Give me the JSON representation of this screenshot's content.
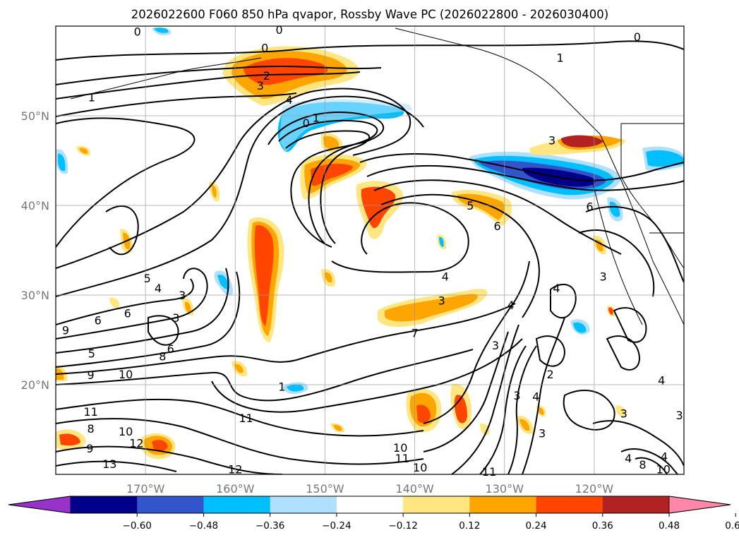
{
  "chart_data": {
    "type": "map",
    "title": "2026022600 F060 850 hPa qvapor, Rossby Wave PC (2026022800 - 2026030400)",
    "lon_range": [
      -180,
      -110
    ],
    "lat_range": [
      10,
      60
    ],
    "x_ticks": [
      {
        "value": -170,
        "label": "170°W"
      },
      {
        "value": -160,
        "label": "160°W"
      },
      {
        "value": -150,
        "label": "150°W"
      },
      {
        "value": -140,
        "label": "140°W"
      },
      {
        "value": -130,
        "label": "130°W"
      },
      {
        "value": -120,
        "label": "120°W"
      }
    ],
    "y_ticks": [
      {
        "value": 50,
        "label": "50°N"
      },
      {
        "value": 40,
        "label": "40°N"
      },
      {
        "value": 30,
        "label": "30°N"
      },
      {
        "value": 20,
        "label": "20°N"
      }
    ],
    "grid": true,
    "colorbar": {
      "orientation": "horizontal",
      "extend": "both",
      "levels": [
        -0.6,
        -0.48,
        -0.36,
        -0.24,
        -0.12,
        0.12,
        0.24,
        0.36,
        0.48,
        0.6
      ],
      "tick_labels": [
        "−0.60",
        "−0.48",
        "−0.36",
        "−0.24",
        "−0.12",
        "0.12",
        "0.24",
        "0.36",
        "0.48",
        "0.60"
      ],
      "colors": [
        "#9932cc",
        "#00008b",
        "#3355cc",
        "#00bfff",
        "#b0e0ff",
        "#ffffff",
        "#ffe680",
        "#ffa500",
        "#ff4500",
        "#b22222",
        "#ff88aa"
      ]
    },
    "contour_labels": [
      {
        "text": "0",
        "lon": -170.9,
        "lat": 59.4
      },
      {
        "text": "0",
        "lon": -155.1,
        "lat": 59.6
      },
      {
        "text": "0",
        "lon": -156.7,
        "lat": 57.6
      },
      {
        "text": "2",
        "lon": -156.5,
        "lat": 54.5
      },
      {
        "text": "3",
        "lon": -157.2,
        "lat": 53.4
      },
      {
        "text": "4",
        "lon": -154.0,
        "lat": 51.8
      },
      {
        "text": "1",
        "lon": -176.0,
        "lat": 52.1
      },
      {
        "text": "1",
        "lon": -151.0,
        "lat": 49.8
      },
      {
        "text": "0",
        "lon": -152.1,
        "lat": 49.2
      },
      {
        "text": "0",
        "lon": -115.2,
        "lat": 58.8
      },
      {
        "text": "1",
        "lon": -123.8,
        "lat": 56.5
      },
      {
        "text": "3",
        "lon": -124.7,
        "lat": 47.3
      },
      {
        "text": "5",
        "lon": -133.8,
        "lat": 40.0
      },
      {
        "text": "6",
        "lon": -130.8,
        "lat": 37.7
      },
      {
        "text": "6",
        "lon": -120.5,
        "lat": 39.9
      },
      {
        "text": "5",
        "lon": -169.8,
        "lat": 31.9
      },
      {
        "text": "4",
        "lon": -168.6,
        "lat": 30.8
      },
      {
        "text": "3",
        "lon": -165.9,
        "lat": 30.0
      },
      {
        "text": "3",
        "lon": -166.6,
        "lat": 27.5
      },
      {
        "text": "6",
        "lon": -175.3,
        "lat": 27.2
      },
      {
        "text": "6",
        "lon": -172.0,
        "lat": 28.0
      },
      {
        "text": "9",
        "lon": -178.9,
        "lat": 26.1
      },
      {
        "text": "5",
        "lon": -176.0,
        "lat": 23.5
      },
      {
        "text": "8",
        "lon": -168.1,
        "lat": 23.2
      },
      {
        "text": "6",
        "lon": -167.2,
        "lat": 24.0
      },
      {
        "text": "9",
        "lon": -176.1,
        "lat": 21.1
      },
      {
        "text": "10",
        "lon": -172.2,
        "lat": 21.2
      },
      {
        "text": "4",
        "lon": -136.6,
        "lat": 32.1
      },
      {
        "text": "3",
        "lon": -137.0,
        "lat": 29.4
      },
      {
        "text": "7",
        "lon": -140.0,
        "lat": 25.8
      },
      {
        "text": "4",
        "lon": -129.3,
        "lat": 28.9
      },
      {
        "text": "4",
        "lon": -124.2,
        "lat": 30.8
      },
      {
        "text": "3",
        "lon": -119.0,
        "lat": 32.1
      },
      {
        "text": "3",
        "lon": -131.0,
        "lat": 24.4
      },
      {
        "text": "2",
        "lon": -124.9,
        "lat": 21.2
      },
      {
        "text": "3",
        "lon": -128.6,
        "lat": 18.8
      },
      {
        "text": "4",
        "lon": -126.5,
        "lat": 18.7
      },
      {
        "text": "3",
        "lon": -116.7,
        "lat": 16.8
      },
      {
        "text": "3",
        "lon": -125.8,
        "lat": 14.6
      },
      {
        "text": "4",
        "lon": -112.5,
        "lat": 20.5
      },
      {
        "text": "3",
        "lon": -110.5,
        "lat": 16.6
      },
      {
        "text": "4",
        "lon": -112.2,
        "lat": 12.0
      },
      {
        "text": "11",
        "lon": -176.1,
        "lat": 17.0
      },
      {
        "text": "8",
        "lon": -176.1,
        "lat": 15.1
      },
      {
        "text": "10",
        "lon": -172.2,
        "lat": 14.8
      },
      {
        "text": "9",
        "lon": -176.2,
        "lat": 12.9
      },
      {
        "text": "12",
        "lon": -171.0,
        "lat": 13.5
      },
      {
        "text": "13",
        "lon": -174.0,
        "lat": 11.2
      },
      {
        "text": "12",
        "lon": -160.0,
        "lat": 10.6
      },
      {
        "text": "11",
        "lon": -158.8,
        "lat": 16.3
      },
      {
        "text": "1",
        "lon": -154.8,
        "lat": 19.8
      },
      {
        "text": "10",
        "lon": -141.6,
        "lat": 13.0
      },
      {
        "text": "11",
        "lon": -141.4,
        "lat": 11.8
      },
      {
        "text": "10",
        "lon": -139.4,
        "lat": 10.8
      },
      {
        "text": "11",
        "lon": -131.7,
        "lat": 10.3
      },
      {
        "text": "4",
        "lon": -116.2,
        "lat": 11.8
      },
      {
        "text": "8",
        "lon": -114.6,
        "lat": 11.1
      },
      {
        "text": "10",
        "lon": -112.3,
        "lat": 10.6
      }
    ]
  }
}
